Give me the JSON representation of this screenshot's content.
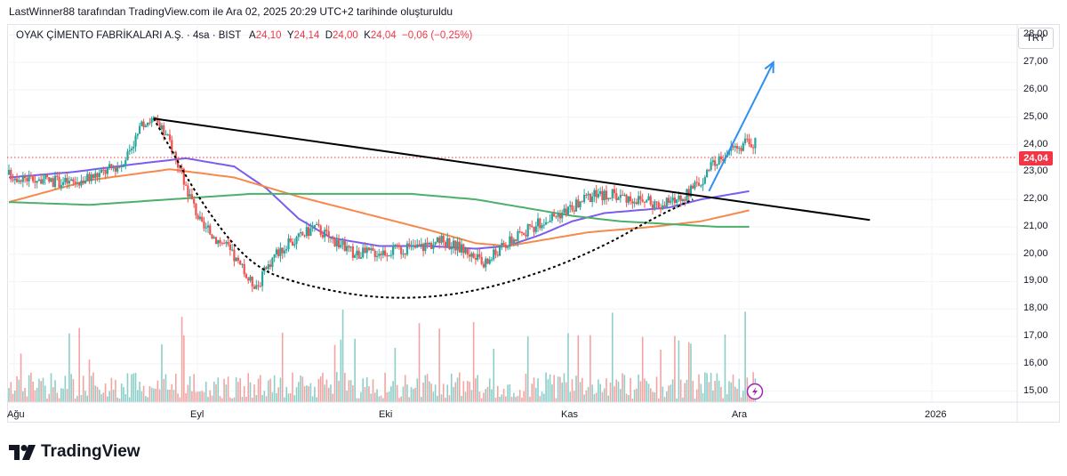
{
  "header": {
    "caption": "LastWinner88 tarafından TradingView.com ile Ara 02, 2025 20:29 UTC+2 tarihinde oluşturuldu"
  },
  "legend": {
    "symbol": "OYAK ÇİMENTO FABRİKALARI A.Ş. · 4sa · BIST",
    "open_label": "A",
    "open": "24,10",
    "high_label": "Y",
    "high": "24,14",
    "low_label": "D",
    "low": "24,00",
    "close_label": "K",
    "close": "24,04",
    "change": "−0,06 (−0,25%)"
  },
  "currency": "TRY",
  "last_price": "24,04",
  "brand": "TradingView",
  "colors": {
    "up": "#26a69a",
    "down": "#ef5350",
    "ma_fast": "#7b5cf0",
    "ma_mid": "#f7894a",
    "ma_slow": "#4caf6a",
    "trendline": "#000000",
    "arrow": "#2e8ff0",
    "price_line": "#f23645"
  },
  "chart_data": {
    "type": "candlestick",
    "title": "OYAK ÇİMENTO FABRİKALARI A.Ş. · 4sa · BIST",
    "ylim": [
      14.6,
      28.4
    ],
    "y_ticks": [
      "15,00",
      "16,00",
      "17,00",
      "18,00",
      "19,00",
      "20,00",
      "21,00",
      "22,00",
      "23,00",
      "24,00",
      "25,00",
      "26,00",
      "27,00",
      "28,00"
    ],
    "x_ticks": [
      "Ağu",
      "Eyl",
      "Eki",
      "Kas",
      "Ara",
      "2026"
    ],
    "series": [
      {
        "name": "price_path",
        "points": [
          [
            0,
            22.9
          ],
          [
            4,
            22.7
          ],
          [
            8,
            22.6
          ],
          [
            11,
            22.9
          ],
          [
            14,
            23.3
          ],
          [
            17,
            24.9
          ],
          [
            18,
            24.9
          ],
          [
            20,
            24.1
          ],
          [
            22,
            22.5
          ],
          [
            24,
            21.0
          ],
          [
            27,
            20.3
          ],
          [
            30,
            19.0
          ],
          [
            31,
            18.9
          ],
          [
            33,
            20.0
          ],
          [
            36,
            20.6
          ],
          [
            38,
            21.0
          ],
          [
            40,
            20.6
          ],
          [
            43,
            20.0
          ],
          [
            46,
            20.1
          ],
          [
            50,
            20.2
          ],
          [
            54,
            20.5
          ],
          [
            57,
            20.1
          ],
          [
            59,
            19.6
          ],
          [
            61,
            20.2
          ],
          [
            64,
            20.8
          ],
          [
            67,
            21.3
          ],
          [
            70,
            21.7
          ],
          [
            72,
            22.1
          ],
          [
            75,
            22.2
          ],
          [
            78,
            22.0
          ],
          [
            81,
            21.8
          ],
          [
            84,
            22.1
          ],
          [
            86,
            22.7
          ],
          [
            88,
            23.4
          ],
          [
            90,
            23.9
          ],
          [
            92,
            24.04
          ]
        ]
      },
      {
        "name": "MA fast",
        "points": [
          [
            0,
            22.8
          ],
          [
            8,
            23.0
          ],
          [
            16,
            23.3
          ],
          [
            22,
            23.5
          ],
          [
            28,
            23.2
          ],
          [
            32,
            22.4
          ],
          [
            36,
            21.3
          ],
          [
            40,
            20.6
          ],
          [
            46,
            20.3
          ],
          [
            52,
            20.3
          ],
          [
            58,
            20.2
          ],
          [
            62,
            20.3
          ],
          [
            66,
            20.7
          ],
          [
            70,
            21.2
          ],
          [
            74,
            21.5
          ],
          [
            78,
            21.6
          ],
          [
            82,
            21.7
          ],
          [
            86,
            22.0
          ],
          [
            92,
            22.3
          ]
        ]
      },
      {
        "name": "MA mid",
        "points": [
          [
            0,
            21.9
          ],
          [
            10,
            22.7
          ],
          [
            20,
            23.1
          ],
          [
            28,
            22.8
          ],
          [
            36,
            22.1
          ],
          [
            44,
            21.5
          ],
          [
            52,
            20.9
          ],
          [
            58,
            20.4
          ],
          [
            62,
            20.3
          ],
          [
            66,
            20.5
          ],
          [
            72,
            20.8
          ],
          [
            80,
            21.0
          ],
          [
            86,
            21.2
          ],
          [
            92,
            21.6
          ]
        ]
      },
      {
        "name": "MA slow",
        "points": [
          [
            0,
            21.9
          ],
          [
            10,
            21.8
          ],
          [
            20,
            22.0
          ],
          [
            30,
            22.2
          ],
          [
            40,
            22.2
          ],
          [
            50,
            22.2
          ],
          [
            58,
            22.0
          ],
          [
            64,
            21.7
          ],
          [
            70,
            21.4
          ],
          [
            76,
            21.2
          ],
          [
            82,
            21.1
          ],
          [
            88,
            21.0
          ],
          [
            92,
            21.0
          ]
        ]
      }
    ],
    "volume_axis_max": 1.0,
    "annotations": [
      {
        "type": "trendline",
        "from": [
          18,
          24.95
        ],
        "to": [
          107,
          21.25
        ]
      },
      {
        "type": "dotted_curve",
        "points": [
          [
            18,
            24.95
          ],
          [
            24,
            21.8
          ],
          [
            30,
            19.6
          ],
          [
            36,
            18.9
          ],
          [
            46,
            18.35
          ],
          [
            56,
            18.5
          ],
          [
            66,
            19.3
          ],
          [
            74,
            20.3
          ],
          [
            80,
            21.3
          ],
          [
            85,
            22.0
          ]
        ]
      },
      {
        "type": "arrow",
        "from": [
          87,
          22.3
        ],
        "to": [
          95,
          27.0
        ]
      }
    ]
  }
}
